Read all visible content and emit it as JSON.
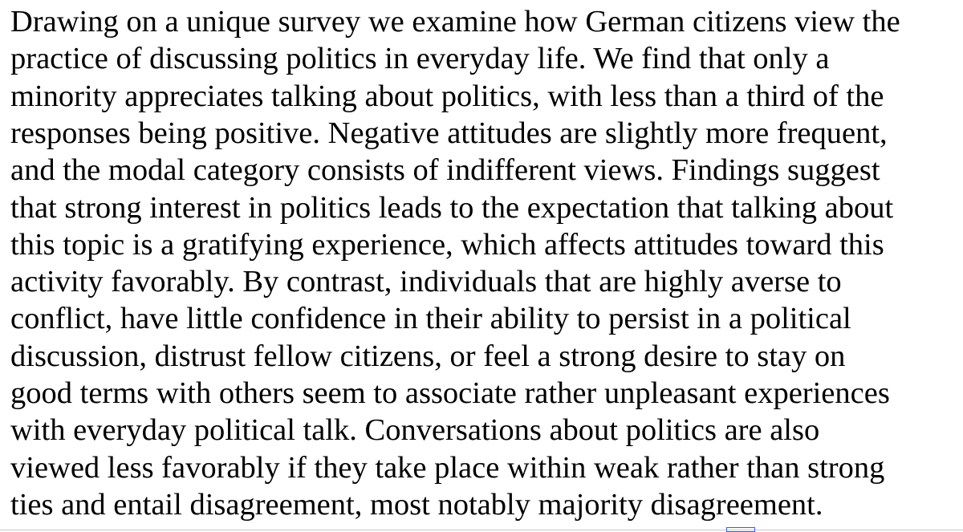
{
  "paragraph": {
    "lines": [
      "Drawing on a unique survey we examine how German citizens view the",
      "practice of discussing politics in everyday life. We find that only a",
      "minority appreciates talking about politics, with less than a third of the",
      "responses being positive. Negative attitudes are slightly more frequent,",
      "and the modal category consists of indifferent views. Findings suggest",
      "that strong interest in politics leads to the expectation that talking about",
      "this topic is a gratifying experience, which affects attitudes toward this",
      "activity favorably. By contrast, individuals that are highly averse to",
      "conflict, have little confidence in their ability to persist in a political",
      "discussion, distrust fellow citizens, or feel a strong desire to stay on",
      "good terms with others seem to associate rather unpleasant experiences",
      "with everyday political talk. Conversations about politics are also",
      "viewed less favorably if they take place within weak rather than strong",
      "ties and entail disagreement, most notably majority disagreement."
    ]
  }
}
